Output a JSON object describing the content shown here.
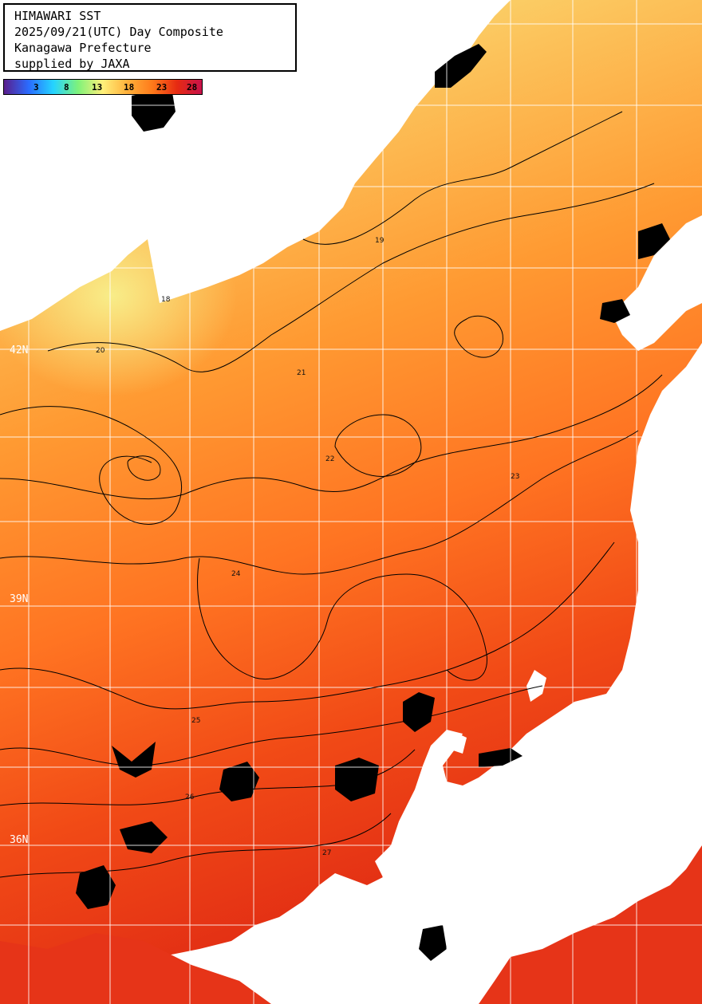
{
  "header": {
    "lines": [
      "HIMAWARI SST",
      "2025/09/21(UTC) Day Composite",
      "Kanagawa Prefecture",
      "supplied by JAXA"
    ]
  },
  "colorbar": {
    "ticks": [
      "3",
      "8",
      "13",
      "18",
      "23",
      "28"
    ],
    "colors": [
      "#5a1e8c",
      "#2a6cff",
      "#25d4ff",
      "#7ff27a",
      "#fff07a",
      "#ffb03a",
      "#ff7a1a",
      "#e62a12",
      "#c8124a"
    ]
  },
  "latitude_labels": [
    "42N",
    "39N",
    "36N"
  ],
  "contour_labels": [
    "18",
    "19",
    "20",
    "21",
    "22",
    "23",
    "24",
    "25",
    "26",
    "27"
  ],
  "colors": {
    "land": "#ffffff",
    "no_data": "#000000",
    "grid": "#ffffff",
    "contour": "#000000",
    "sst_cool": "#f6f08a",
    "sst_mid": "#ffa23a",
    "sst_warm": "#ea3a14"
  }
}
